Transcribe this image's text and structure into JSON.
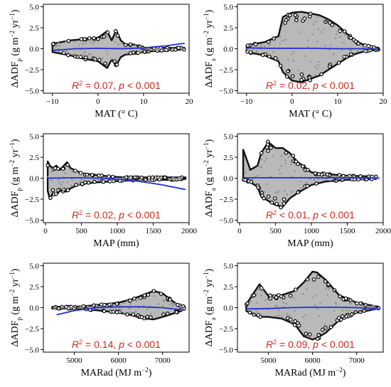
{
  "chart_data": [
    {
      "type": "scatter",
      "xlabel": "MAT (° C)",
      "ylabel": "ΔADF_p (g m^-2 yr^-1)",
      "stat": "R² = 0.07, p < 0.001",
      "xlim": [
        -12,
        20
      ],
      "ylim": [
        -5.3,
        5.3
      ],
      "xticks": [
        -10,
        0,
        10,
        20
      ],
      "yticks": [
        -5.0,
        -2.5,
        0.0,
        2.5,
        5.0
      ],
      "envelope_x": [
        -10,
        -8,
        -6,
        -4,
        -2,
        0,
        2,
        3,
        4,
        5,
        6,
        8,
        10,
        14,
        19
      ],
      "envelope_upper": [
        0.6,
        0.8,
        1.0,
        1.1,
        1.2,
        1.3,
        2.1,
        1.0,
        2.2,
        1.0,
        0.5,
        0.5,
        0.1,
        0.1,
        0.1
      ],
      "envelope_lower": [
        -0.4,
        -0.6,
        -0.8,
        -1.1,
        -1.3,
        -1.5,
        -2.3,
        -1.3,
        -2.0,
        -1.0,
        -0.7,
        -0.6,
        -0.4,
        -0.2,
        -0.1
      ],
      "fit": {
        "x": [
          -10,
          -5,
          0,
          5,
          10,
          15,
          19
        ],
        "y": [
          -0.2,
          0.0,
          0.05,
          0.0,
          0.1,
          0.35,
          0.65
        ]
      }
    },
    {
      "type": "scatter",
      "xlabel": "MAT (° C)",
      "ylabel": "ΔADF_a (g m^-2 yr^-1)",
      "stat": "R² = 0.02, p < 0.001",
      "xlim": [
        -12,
        20
      ],
      "ylim": [
        -5.3,
        5.3
      ],
      "xticks": [
        -10,
        0,
        10,
        20
      ],
      "yticks": [
        -5.0,
        -2.5,
        0.0,
        2.5,
        5.0
      ],
      "envelope_x": [
        -10,
        -6,
        -3,
        -2,
        0,
        2,
        4,
        6,
        8,
        10,
        12,
        14,
        16,
        19
      ],
      "envelope_upper": [
        0.4,
        0.8,
        1.5,
        3.8,
        4.3,
        4.4,
        4.2,
        4.0,
        3.5,
        2.8,
        1.8,
        0.9,
        0.4,
        0.1
      ],
      "envelope_lower": [
        -0.4,
        -0.8,
        -1.5,
        -2.8,
        -3.8,
        -4.0,
        -3.6,
        -3.2,
        -2.5,
        -1.8,
        -1.1,
        -0.6,
        -0.3,
        -0.1
      ],
      "fit": {
        "x": [
          -10,
          -5,
          0,
          5,
          10,
          15,
          19
        ],
        "y": [
          0.1,
          0.05,
          0.05,
          0.05,
          0.0,
          0.0,
          -0.1
        ]
      }
    },
    {
      "type": "scatter",
      "xlabel": "MAP (mm)",
      "ylabel": "ΔADF_p (g m^-2 yr^-1)",
      "stat": "R² = 0.02, p < 0.001",
      "xlim": [
        -30,
        2000
      ],
      "ylim": [
        -5.3,
        5.3
      ],
      "xticks": [
        0,
        500,
        1000,
        1500,
        2000
      ],
      "yticks": [
        -5.0,
        -2.5,
        0.0,
        2.5,
        5.0
      ],
      "envelope_x": [
        30,
        60,
        100,
        150,
        200,
        300,
        350,
        400,
        500,
        700,
        900,
        1100,
        1400,
        1700,
        1950
      ],
      "envelope_upper": [
        2.0,
        1.5,
        1.2,
        1.5,
        1.0,
        1.9,
        1.2,
        1.0,
        0.6,
        0.4,
        0.2,
        0.1,
        0.1,
        0.1,
        0.1
      ],
      "envelope_lower": [
        -1.5,
        -2.5,
        -1.8,
        -2.0,
        -1.5,
        -1.6,
        -1.2,
        -1.0,
        -0.7,
        -0.5,
        -0.4,
        -0.3,
        -0.2,
        -0.2,
        -0.1
      ],
      "fit": {
        "x": [
          30,
          400,
          800,
          1200,
          1600,
          1950
        ],
        "y": [
          0.0,
          0.05,
          0.0,
          -0.25,
          -0.75,
          -1.35
        ]
      }
    },
    {
      "type": "scatter",
      "xlabel": "MAP (mm)",
      "ylabel": "ΔADF_a (g m^-2 yr^-1)",
      "stat": "R² < 0.01, p < 0.001",
      "xlim": [
        -30,
        2000
      ],
      "ylim": [
        -5.3,
        5.3
      ],
      "xticks": [
        0,
        500,
        1000,
        1500,
        2000
      ],
      "yticks": [
        -5.0,
        -2.5,
        0.0,
        2.5,
        5.0
      ],
      "envelope_x": [
        50,
        150,
        250,
        300,
        400,
        500,
        600,
        700,
        800,
        1000,
        1200,
        1500,
        1900
      ],
      "envelope_upper": [
        3.4,
        1.0,
        1.5,
        3.0,
        4.3,
        3.6,
        3.6,
        3.0,
        2.0,
        0.7,
        0.5,
        0.3,
        0.2
      ],
      "envelope_lower": [
        -0.2,
        -0.5,
        -1.0,
        -2.2,
        -2.7,
        -3.2,
        -3.4,
        -2.4,
        -1.8,
        -0.8,
        -0.4,
        -0.2,
        -0.1
      ],
      "fit": {
        "x": [
          50,
          500,
          1000,
          1500,
          1950
        ],
        "y": [
          0.05,
          0.05,
          0.05,
          0.05,
          0.0
        ]
      }
    },
    {
      "type": "scatter",
      "xlabel": "MARad (MJ m^-2)",
      "ylabel": "ΔADF_p (g m^-2 yr^-1)",
      "stat": "R² = 0.14, p < 0.001",
      "xlim": [
        4300,
        7600
      ],
      "ylim": [
        -5.3,
        5.3
      ],
      "xticks": [
        5000,
        6000,
        7000
      ],
      "yticks": [
        -5.0,
        -2.5,
        0.0,
        2.5,
        5.0
      ],
      "envelope_x": [
        4500,
        5000,
        5500,
        6000,
        6300,
        6500,
        6800,
        7000,
        7300,
        7500
      ],
      "envelope_upper": [
        0.1,
        0.1,
        0.3,
        0.6,
        1.0,
        1.4,
        2.0,
        1.7,
        0.5,
        0.1
      ],
      "envelope_lower": [
        -0.1,
        -0.1,
        -0.3,
        -0.6,
        -0.9,
        -1.2,
        -1.4,
        -1.1,
        -0.6,
        -0.1
      ],
      "fit": {
        "x": [
          4600,
          5000,
          5500,
          6000,
          6500,
          7000,
          7500
        ],
        "y": [
          -0.85,
          -0.35,
          0.0,
          0.1,
          0.1,
          0.0,
          -0.3
        ]
      }
    },
    {
      "type": "scatter",
      "xlabel": "MARad (MJ m^-2)",
      "ylabel": "ΔADF_a (g m^-2 yr^-1)",
      "stat": "R² = 0.09, p < 0.001",
      "xlim": [
        4300,
        7600
      ],
      "ylim": [
        -5.3,
        5.3
      ],
      "xticks": [
        5000,
        6000,
        7000
      ],
      "yticks": [
        -5.0,
        -2.5,
        0.0,
        2.5,
        5.0
      ],
      "envelope_x": [
        4500,
        4800,
        5000,
        5300,
        5600,
        5800,
        6000,
        6100,
        6300,
        6600,
        7000,
        7500
      ],
      "envelope_upper": [
        0.4,
        2.8,
        1.4,
        1.5,
        2.0,
        3.0,
        4.3,
        4.2,
        3.3,
        1.5,
        0.6,
        0.1
      ],
      "envelope_lower": [
        -0.4,
        -1.1,
        -1.1,
        -1.3,
        -2.0,
        -3.4,
        -3.8,
        -3.6,
        -3.0,
        -1.5,
        -0.6,
        -0.1
      ],
      "fit": {
        "x": [
          4500,
          5000,
          5500,
          6000,
          6500,
          7000,
          7500
        ],
        "y": [
          -0.15,
          -0.1,
          0.0,
          0.05,
          0.05,
          0.0,
          -0.1
        ]
      }
    }
  ]
}
